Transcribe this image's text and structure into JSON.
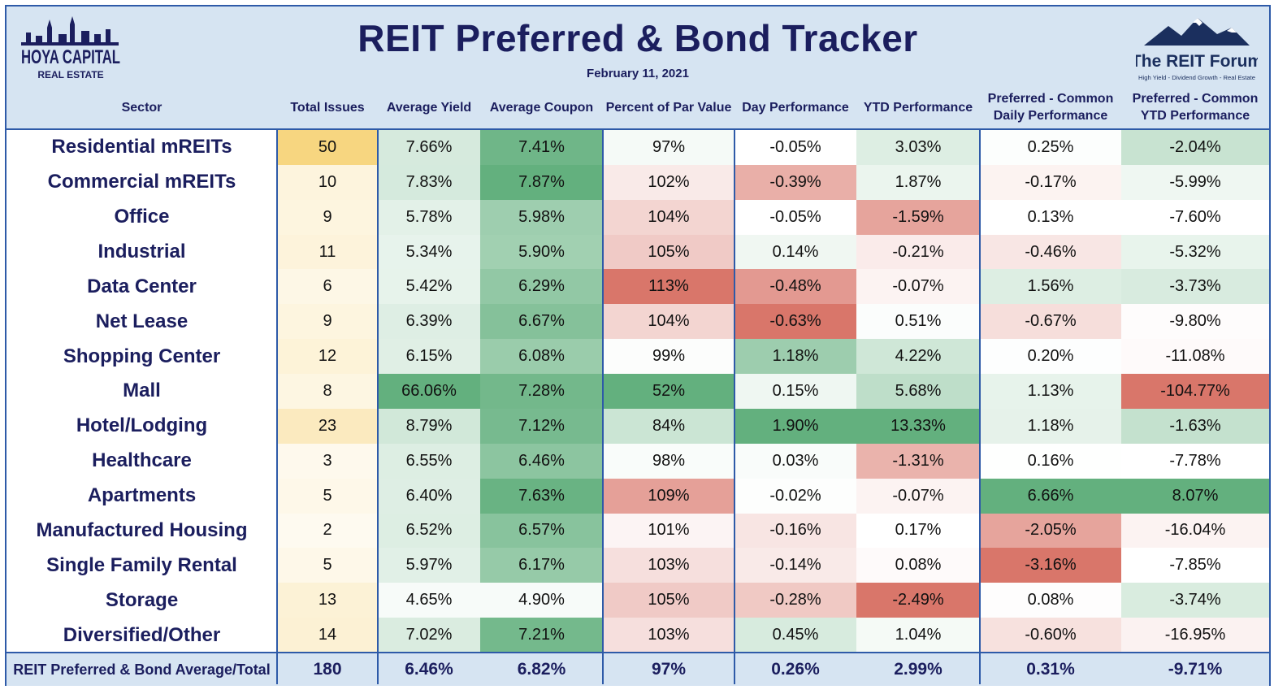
{
  "header": {
    "title": "REIT Preferred & Bond Tracker",
    "date": "February 11, 2021",
    "logo_left_line1": "HOYA CAPITAL",
    "logo_left_line2": "REAL ESTATE",
    "logo_right_line1": "The REIT Forum",
    "logo_right_line2": "High Yield - Dividend Growth - Real Estate"
  },
  "columns": [
    "Sector",
    "Total Issues",
    "Average Yield",
    "Average Coupon",
    "Percent of Par Value",
    "Day Performance",
    "YTD Performance",
    "Preferred - Common Daily Performance",
    "Preferred - Common YTD Performance"
  ],
  "colors": {
    "brand_navy": "#1b1e5e",
    "header_bg": "#d6e4f2",
    "border_blue": "#2e5aa8",
    "heat_green": "#63b07e",
    "heat_red": "#d9766a",
    "heat_yellow": "#f7d680"
  },
  "chart_data": {
    "type": "table",
    "title": "REIT Preferred & Bond Tracker",
    "rows": [
      {
        "sector": "Residential mREITs",
        "issues": "50",
        "yield": "7.66%",
        "coupon": "7.41%",
        "par": "97%",
        "day": "-0.05%",
        "ytd": "3.03%",
        "pc_daily": "0.25%",
        "pc_ytd": "-2.04%"
      },
      {
        "sector": "Commercial mREITs",
        "issues": "10",
        "yield": "7.83%",
        "coupon": "7.87%",
        "par": "102%",
        "day": "-0.39%",
        "ytd": "1.87%",
        "pc_daily": "-0.17%",
        "pc_ytd": "-5.99%"
      },
      {
        "sector": "Office",
        "issues": "9",
        "yield": "5.78%",
        "coupon": "5.98%",
        "par": "104%",
        "day": "-0.05%",
        "ytd": "-1.59%",
        "pc_daily": "0.13%",
        "pc_ytd": "-7.60%"
      },
      {
        "sector": "Industrial",
        "issues": "11",
        "yield": "5.34%",
        "coupon": "5.90%",
        "par": "105%",
        "day": "0.14%",
        "ytd": "-0.21%",
        "pc_daily": "-0.46%",
        "pc_ytd": "-5.32%"
      },
      {
        "sector": "Data Center",
        "issues": "6",
        "yield": "5.42%",
        "coupon": "6.29%",
        "par": "113%",
        "day": "-0.48%",
        "ytd": "-0.07%",
        "pc_daily": "1.56%",
        "pc_ytd": "-3.73%"
      },
      {
        "sector": "Net Lease",
        "issues": "9",
        "yield": "6.39%",
        "coupon": "6.67%",
        "par": "104%",
        "day": "-0.63%",
        "ytd": "0.51%",
        "pc_daily": "-0.67%",
        "pc_ytd": "-9.80%"
      },
      {
        "sector": "Shopping Center",
        "issues": "12",
        "yield": "6.15%",
        "coupon": "6.08%",
        "par": "99%",
        "day": "1.18%",
        "ytd": "4.22%",
        "pc_daily": "0.20%",
        "pc_ytd": "-11.08%"
      },
      {
        "sector": "Mall",
        "issues": "8",
        "yield": "66.06%",
        "coupon": "7.28%",
        "par": "52%",
        "day": "0.15%",
        "ytd": "5.68%",
        "pc_daily": "1.13%",
        "pc_ytd": "-104.77%"
      },
      {
        "sector": "Hotel/Lodging",
        "issues": "23",
        "yield": "8.79%",
        "coupon": "7.12%",
        "par": "84%",
        "day": "1.90%",
        "ytd": "13.33%",
        "pc_daily": "1.18%",
        "pc_ytd": "-1.63%"
      },
      {
        "sector": "Healthcare",
        "issues": "3",
        "yield": "6.55%",
        "coupon": "6.46%",
        "par": "98%",
        "day": "0.03%",
        "ytd": "-1.31%",
        "pc_daily": "0.16%",
        "pc_ytd": "-7.78%"
      },
      {
        "sector": "Apartments",
        "issues": "5",
        "yield": "6.40%",
        "coupon": "7.63%",
        "par": "109%",
        "day": "-0.02%",
        "ytd": "-0.07%",
        "pc_daily": "6.66%",
        "pc_ytd": "8.07%"
      },
      {
        "sector": "Manufactured Housing",
        "issues": "2",
        "yield": "6.52%",
        "coupon": "6.57%",
        "par": "101%",
        "day": "-0.16%",
        "ytd": "0.17%",
        "pc_daily": "-2.05%",
        "pc_ytd": "-16.04%"
      },
      {
        "sector": "Single Family Rental",
        "issues": "5",
        "yield": "5.97%",
        "coupon": "6.17%",
        "par": "103%",
        "day": "-0.14%",
        "ytd": "0.08%",
        "pc_daily": "-3.16%",
        "pc_ytd": "-7.85%"
      },
      {
        "sector": "Storage",
        "issues": "13",
        "yield": "4.65%",
        "coupon": "4.90%",
        "par": "105%",
        "day": "-0.28%",
        "ytd": "-2.49%",
        "pc_daily": "0.08%",
        "pc_ytd": "-3.74%"
      },
      {
        "sector": "Diversified/Other",
        "issues": "14",
        "yield": "7.02%",
        "coupon": "7.21%",
        "par": "103%",
        "day": "0.45%",
        "ytd": "1.04%",
        "pc_daily": "-0.60%",
        "pc_ytd": "-16.95%"
      }
    ],
    "footer": {
      "sector": "REIT Preferred & Bond Average/Total",
      "issues": "180",
      "yield": "6.46%",
      "coupon": "6.82%",
      "par": "97%",
      "day": "0.26%",
      "ytd": "2.99%",
      "pc_daily": "0.31%",
      "pc_ytd": "-9.71%"
    }
  }
}
